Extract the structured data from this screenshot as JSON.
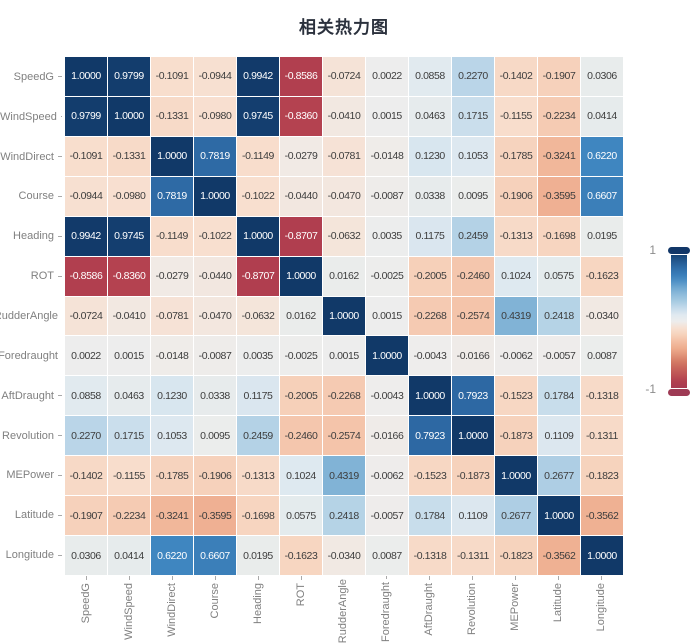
{
  "title": "相关热力图",
  "colorbar": {
    "max_label": "1",
    "min_label": "-1",
    "max_handle_color": "#123768",
    "min_handle_color": "#9e3b55"
  },
  "theme": {
    "title_color": "#2b313d",
    "axis_label_color": "#808080",
    "tick_color": "#a9a9a9",
    "cell_text_dark": "#3d3d3d",
    "cell_text_light": "#ffffff",
    "background": "#ffffff"
  },
  "chart_data": {
    "type": "heatmap",
    "title": "相关热力图",
    "categories": [
      "SpeedG",
      "WindSpeed",
      "WindDirect",
      "Course",
      "Heading",
      "ROT",
      "RudderAngle",
      "Foredraught",
      "AftDraught",
      "Revolution",
      "MEPower",
      "Latitude",
      "Longitude"
    ],
    "value_range": [
      -1,
      1
    ],
    "legend_position": "right",
    "colorscale": "blue(+1) to white(0) to red(-1)",
    "matrix": [
      [
        1.0,
        0.9799,
        -0.1091,
        -0.0944,
        0.9942,
        -0.8586,
        -0.0724,
        0.0022,
        0.0858,
        0.227,
        -0.1402,
        -0.1907,
        0.0306
      ],
      [
        0.9799,
        1.0,
        -0.1331,
        -0.098,
        0.9745,
        -0.836,
        -0.041,
        0.0015,
        0.0463,
        0.1715,
        -0.1155,
        -0.2234,
        0.0414
      ],
      [
        -0.1091,
        -0.1331,
        1.0,
        0.7819,
        -0.1149,
        -0.0279,
        -0.0781,
        -0.0148,
        0.123,
        0.1053,
        -0.1785,
        -0.3241,
        0.622
      ],
      [
        -0.0944,
        -0.098,
        0.7819,
        1.0,
        -0.1022,
        -0.044,
        -0.047,
        -0.0087,
        0.0338,
        0.0095,
        -0.1906,
        -0.3595,
        0.6607
      ],
      [
        0.9942,
        0.9745,
        -0.1149,
        -0.1022,
        1.0,
        -0.8707,
        -0.0632,
        0.0035,
        0.1175,
        0.2459,
        -0.1313,
        -0.1698,
        0.0195
      ],
      [
        -0.8586,
        -0.836,
        -0.0279,
        -0.044,
        -0.8707,
        1.0,
        0.0162,
        -0.0025,
        -0.2005,
        -0.246,
        0.1024,
        0.0575,
        -0.1623
      ],
      [
        -0.0724,
        -0.041,
        -0.0781,
        -0.047,
        -0.0632,
        0.0162,
        1.0,
        0.0015,
        -0.2268,
        -0.2574,
        0.4319,
        0.2418,
        -0.034
      ],
      [
        0.0022,
        0.0015,
        -0.0148,
        -0.0087,
        0.0035,
        -0.0025,
        0.0015,
        1.0,
        -0.0043,
        -0.0166,
        -0.0062,
        -0.0057,
        0.0087
      ],
      [
        0.0858,
        0.0463,
        0.123,
        0.0338,
        0.1175,
        -0.2005,
        -0.2268,
        -0.0043,
        1.0,
        0.7923,
        -0.1523,
        0.1784,
        -0.1318
      ],
      [
        0.227,
        0.1715,
        0.1053,
        0.0095,
        0.2459,
        -0.246,
        -0.2574,
        -0.0166,
        0.7923,
        1.0,
        -0.1873,
        0.1109,
        -0.1311
      ],
      [
        -0.1402,
        -0.1155,
        -0.1785,
        -0.1906,
        -0.1313,
        0.1024,
        0.4319,
        -0.0062,
        -0.1523,
        -0.1873,
        1.0,
        0.2677,
        -0.1823
      ],
      [
        -0.1907,
        -0.2234,
        -0.3241,
        -0.3595,
        -0.1698,
        0.0575,
        0.2418,
        -0.0057,
        0.1784,
        0.1109,
        0.2677,
        1.0,
        -0.3562
      ],
      [
        0.0306,
        0.0414,
        0.622,
        0.6607,
        0.0195,
        -0.1623,
        -0.034,
        0.0087,
        -0.1318,
        -0.1311,
        -0.1823,
        -0.3562,
        1.0
      ]
    ],
    "color_stops": [
      [
        -1.0,
        "#a23850"
      ],
      [
        -0.85,
        "#b23f4f"
      ],
      [
        -0.6,
        "#d0735f"
      ],
      [
        -0.4,
        "#eda98a"
      ],
      [
        -0.3,
        "#f2bb9f"
      ],
      [
        -0.2,
        "#f6d0b9"
      ],
      [
        -0.1,
        "#f8dfcf"
      ],
      [
        -0.02,
        "#f0ebe7"
      ],
      [
        0.0,
        "#ededed"
      ],
      [
        0.02,
        "#e9eceb"
      ],
      [
        0.1,
        "#dfe9f0"
      ],
      [
        0.2,
        "#c2daea"
      ],
      [
        0.3,
        "#a4c9e1"
      ],
      [
        0.45,
        "#7cb0d5"
      ],
      [
        0.62,
        "#3f86c0"
      ],
      [
        0.8,
        "#2c67a2"
      ],
      [
        0.92,
        "#1a4a7d"
      ],
      [
        1.0,
        "#113968"
      ]
    ]
  }
}
